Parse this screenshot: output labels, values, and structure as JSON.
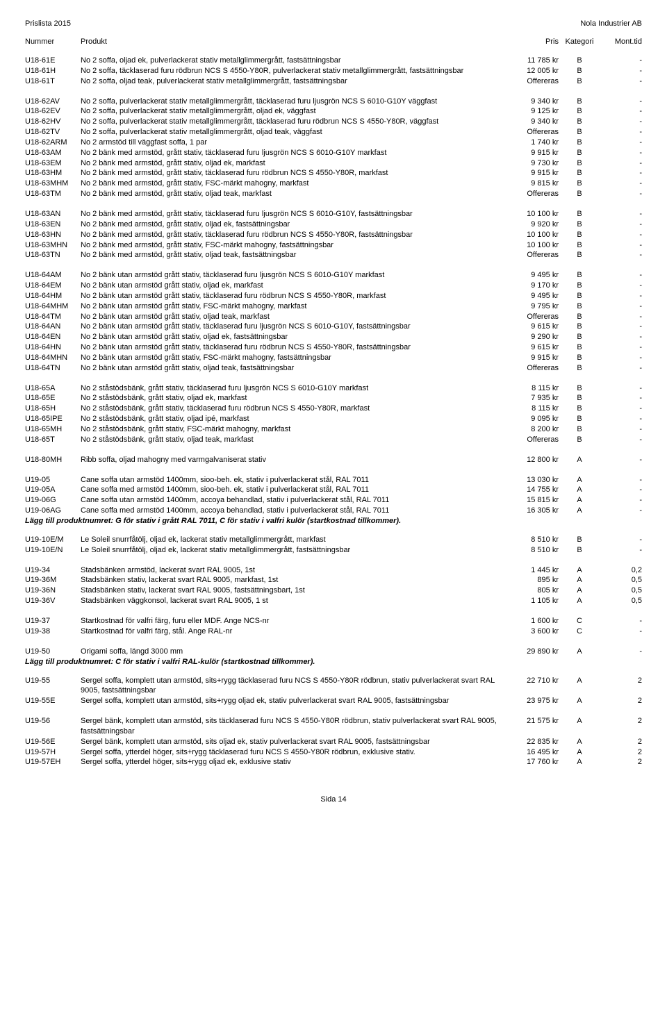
{
  "header": {
    "left": "Prislista 2015",
    "right": "Nola Industrier AB",
    "cols": {
      "nummer": "Nummer",
      "produkt": "Produkt",
      "pris": "Pris",
      "kategori": "Kategori",
      "mont": "Mont.tid"
    }
  },
  "footer": "Sida 14",
  "groups": [
    {
      "rows": [
        {
          "n": "U18-61E",
          "p": "No 2 soffa, oljad ek, pulverlackerat stativ metallglimmergrått, fastsättningsbar",
          "pr": "11 785 kr",
          "k": "B",
          "m": "-"
        },
        {
          "n": "U18-61H",
          "p": "No 2 soffa, täcklaserad furu rödbrun NCS S 4550-Y80R, pulverlackerat stativ metallglimmergrått, fastsättningsbar",
          "pr": "12 005 kr",
          "k": "B",
          "m": "-"
        },
        {
          "n": "U18-61T",
          "p": "No 2 soffa, oljad teak, pulverlackerat stativ metallglimmergrått, fastsättningsbar",
          "pr": "Offereras",
          "k": "B",
          "m": "-"
        }
      ]
    },
    {
      "rows": [
        {
          "n": "U18-62AV",
          "p": "No 2 soffa, pulverlackerat stativ metallglimmergrått, täcklaserad furu ljusgrön NCS S 6010-G10Y väggfast",
          "pr": "9 340 kr",
          "k": "B",
          "m": "-"
        },
        {
          "n": "U18-62EV",
          "p": "No 2 soffa, pulverlackerat stativ metallglimmergrått, oljad ek, väggfast",
          "pr": "9 125 kr",
          "k": "B",
          "m": "-"
        },
        {
          "n": "U18-62HV",
          "p": "No 2 soffa, pulverlackerat stativ metallglimmergrått, täcklaserad furu rödbrun NCS S 4550-Y80R, väggfast",
          "pr": "9 340 kr",
          "k": "B",
          "m": "-"
        },
        {
          "n": "U18-62TV",
          "p": "No 2 soffa, pulverlackerat stativ metallglimmergrått, oljad teak, väggfast",
          "pr": "Offereras",
          "k": "B",
          "m": "-"
        },
        {
          "n": "U18-62ARM",
          "p": "No 2 armstöd till väggfast soffa, 1 par",
          "pr": "1 740 kr",
          "k": "B",
          "m": "-"
        },
        {
          "n": "U18-63AM",
          "p": "No 2 bänk med armstöd, grått stativ, täcklaserad furu ljusgrön NCS S 6010-G10Y markfast",
          "pr": "9 915 kr",
          "k": "B",
          "m": "-"
        },
        {
          "n": "U18-63EM",
          "p": "No 2 bänk med armstöd, grått stativ, oljad ek, markfast",
          "pr": "9 730 kr",
          "k": "B",
          "m": "-"
        },
        {
          "n": "U18-63HM",
          "p": "No 2 bänk med armstöd, grått stativ, täcklaserad furu rödbrun NCS S 4550-Y80R, markfast",
          "pr": "9 915 kr",
          "k": "B",
          "m": "-"
        },
        {
          "n": "U18-63MHM",
          "p": "No 2 bänk med armstöd, grått stativ, FSC-märkt  mahogny, markfast",
          "pr": "9 815 kr",
          "k": "B",
          "m": "-"
        },
        {
          "n": "U18-63TM",
          "p": "No 2 bänk med armstöd, grått stativ, oljad teak, markfast",
          "pr": "Offereras",
          "k": "B",
          "m": "-"
        }
      ]
    },
    {
      "rows": [
        {
          "n": "U18-63AN",
          "p": "No 2 bänk med armstöd, grått stativ, täcklaserad furu ljusgrön NCS S 6010-G10Y, fastsättningsbar",
          "pr": "10 100 kr",
          "k": "B",
          "m": "-"
        },
        {
          "n": "U18-63EN",
          "p": "No 2 bänk med armstöd, grått stativ, oljad ek, fastsättningsbar",
          "pr": "9 920 kr",
          "k": "B",
          "m": "-"
        },
        {
          "n": "U18-63HN",
          "p": "No 2 bänk med armstöd, grått stativ, täcklaserad furu rödbrun NCS S 4550-Y80R, fastsättningsbar",
          "pr": "10 100 kr",
          "k": "B",
          "m": "-"
        },
        {
          "n": "U18-63MHN",
          "p": "No 2 bänk med armstöd, grått stativ, FSC-märkt  mahogny, fastsättningsbar",
          "pr": "10 100 kr",
          "k": "B",
          "m": "-"
        },
        {
          "n": "U18-63TN",
          "p": "No 2 bänk med armstöd, grått stativ, oljad teak, fastsättningsbar",
          "pr": "Offereras",
          "k": "B",
          "m": "-"
        }
      ]
    },
    {
      "rows": [
        {
          "n": "U18-64AM",
          "p": "No 2 bänk utan armstöd grått stativ, täcklaserad furu ljusgrön NCS S 6010-G10Y markfast",
          "pr": "9 495 kr",
          "k": "B",
          "m": "-"
        },
        {
          "n": "U18-64EM",
          "p": "No 2 bänk utan armstöd grått stativ, oljad ek, markfast",
          "pr": "9 170 kr",
          "k": "B",
          "m": "-"
        },
        {
          "n": "U18-64HM",
          "p": "No 2 bänk utan armstöd grått stativ, täcklaserad furu rödbrun NCS S 4550-Y80R, markfast",
          "pr": "9 495 kr",
          "k": "B",
          "m": "-"
        },
        {
          "n": "U18-64MHM",
          "p": "No 2 bänk utan armstöd grått stativ, FSC-märkt  mahogny, markfast",
          "pr": "9 795 kr",
          "k": "B",
          "m": "-"
        },
        {
          "n": "U18-64TM",
          "p": "No 2 bänk utan armstöd grått stativ, oljad teak, markfast",
          "pr": "Offereras",
          "k": "B",
          "m": "-"
        },
        {
          "n": "U18-64AN",
          "p": "No 2 bänk utan armstöd grått stativ, täcklaserad furu ljusgrön NCS S 6010-G10Y, fastsättningsbar",
          "pr": "9 615 kr",
          "k": "B",
          "m": "-"
        },
        {
          "n": "U18-64EN",
          "p": "No 2 bänk utan armstöd grått stativ, oljad ek, fastsättningsbar",
          "pr": "9 290 kr",
          "k": "B",
          "m": "-"
        },
        {
          "n": "U18-64HN",
          "p": "No 2 bänk utan armstöd grått stativ, täcklaserad furu rödbrun NCS S 4550-Y80R, fastsättningsbar",
          "pr": "9 615 kr",
          "k": "B",
          "m": "-"
        },
        {
          "n": "U18-64MHN",
          "p": "No 2 bänk utan armstöd grått stativ, FSC-märkt  mahogny, fastsättningsbar",
          "pr": "9 915 kr",
          "k": "B",
          "m": "-"
        },
        {
          "n": "U18-64TN",
          "p": "No 2 bänk utan armstöd grått stativ, oljad teak, fastsättningsbar",
          "pr": "Offereras",
          "k": "B",
          "m": "-"
        }
      ]
    },
    {
      "rows": [
        {
          "n": "U18-65A",
          "p": "No 2 ståstödsbänk, grått stativ, täcklaserad furu ljusgrön NCS S 6010-G10Y markfast",
          "pr": "8 115 kr",
          "k": "B",
          "m": "-"
        },
        {
          "n": "U18-65E",
          "p": "No 2 ståstödsbänk, grått stativ, oljad ek, markfast",
          "pr": "7 935 kr",
          "k": "B",
          "m": "-"
        },
        {
          "n": "U18-65H",
          "p": "No 2 ståstödsbänk, grått stativ, täcklaserad furu rödbrun NCS S 4550-Y80R, markfast",
          "pr": "8 115 kr",
          "k": "B",
          "m": "-"
        },
        {
          "n": "U18-65IPE",
          "p": "No 2 ståstödsbänk, grått stativ, oljad ipé, markfast",
          "pr": "9 095 kr",
          "k": "B",
          "m": "-"
        },
        {
          "n": "U18-65MH",
          "p": "No 2 ståstödsbänk, grått stativ, FSC-märkt  mahogny, markfast",
          "pr": "8 200 kr",
          "k": "B",
          "m": "-"
        },
        {
          "n": "U18-65T",
          "p": "No 2 ståstödsbänk, grått stativ, oljad teak, markfast",
          "pr": "Offereras",
          "k": "B",
          "m": "-"
        }
      ]
    },
    {
      "rows": [
        {
          "n": "U18-80MH",
          "p": "Ribb soffa, oljad mahogny med varmgalvaniserat stativ",
          "pr": "12 800 kr",
          "k": "A",
          "m": "-"
        }
      ]
    },
    {
      "rows": [
        {
          "n": "U19-05",
          "p": "Cane soffa utan armstöd 1400mm, sioo-beh. ek, stativ i pulverlackerat stål, RAL 7011",
          "pr": "13 030 kr",
          "k": "A",
          "m": "-"
        },
        {
          "n": "U19-05A",
          "p": "Cane soffa med armstöd 1400mm, sioo-beh. ek, stativ i pulverlackerat stål, RAL 7011",
          "pr": "14 755 kr",
          "k": "A",
          "m": "-"
        },
        {
          "n": "U19-06G",
          "p": "Cane soffa utan armstöd 1400mm, accoya behandlad, stativ i pulverlackerat stål, RAL 7011",
          "pr": "15 815 kr",
          "k": "A",
          "m": "-"
        },
        {
          "n": "U19-06AG",
          "p": "Cane soffa med armstöd 1400mm, accoya behandlad, stativ i pulverlackerat stål, RAL 7011",
          "pr": "16 305 kr",
          "k": "A",
          "m": "-"
        }
      ],
      "note": "Lägg till produktnumret: G för stativ i grått RAL 7011, C för stativ i valfri kulör (startkostnad tillkommer)."
    },
    {
      "rows": [
        {
          "n": "U19-10E/M",
          "p": "Le Soleil snurrfåtölj, oljad ek, lackerat stativ metallglimmergrått, markfast",
          "pr": "8 510 kr",
          "k": "B",
          "m": "-"
        },
        {
          "n": "U19-10E/N",
          "p": "Le Soleil snurrfåtölj, oljad ek, lackerat stativ metallglimmergrått, fastsättningsbar",
          "pr": "8 510 kr",
          "k": "B",
          "m": "-"
        }
      ]
    },
    {
      "rows": [
        {
          "n": "U19-34",
          "p": "Stadsbänken armstöd, lackerat svart RAL 9005, 1st",
          "pr": "1 445 kr",
          "k": "A",
          "m": "0,2"
        },
        {
          "n": "U19-36M",
          "p": "Stadsbänken stativ, lackerat svart RAL 9005, markfast, 1st",
          "pr": "895 kr",
          "k": "A",
          "m": "0,5"
        },
        {
          "n": "U19-36N",
          "p": "Stadsbänken stativ, lackerat svart RAL 9005, fastsättningsbart, 1st",
          "pr": "805 kr",
          "k": "A",
          "m": "0,5"
        },
        {
          "n": "U19-36V",
          "p": "Stadsbänken väggkonsol, lackerat svart RAL 9005, 1 st",
          "pr": "1 105 kr",
          "k": "A",
          "m": "0,5"
        }
      ]
    },
    {
      "rows": [
        {
          "n": "U19-37",
          "p": "Startkostnad för valfri färg, furu eller MDF. Ange NCS-nr",
          "pr": "1 600 kr",
          "k": "C",
          "m": "-"
        },
        {
          "n": "U19-38",
          "p": "Startkostnad för valfri färg, stål. Ange RAL-nr",
          "pr": "3 600 kr",
          "k": "C",
          "m": "-"
        }
      ]
    },
    {
      "rows": [
        {
          "n": "U19-50",
          "p": "Origami soffa, längd 3000 mm",
          "pr": "29 890 kr",
          "k": "A",
          "m": "-"
        }
      ],
      "note": "Lägg till produktnumret: C för stativ i valfri RAL-kulör (startkostnad tillkommer)."
    },
    {
      "rows": [
        {
          "n": "U19-55",
          "p": "Sergel soffa, komplett utan armstöd, sits+rygg täcklaserad furu NCS S 4550-Y80R rödbrun, stativ pulverlackerat svart RAL 9005, fastsättningsbar",
          "pr": "22 710 kr",
          "k": "A",
          "m": "2"
        },
        {
          "n": "U19-55E",
          "p": "Sergel soffa, komplett utan armstöd, sits+rygg oljad ek, stativ pulverlackerat svart RAL 9005, fastsättningsbar",
          "pr": "23 975 kr",
          "k": "A",
          "m": "2"
        }
      ]
    },
    {
      "rows": [
        {
          "n": "U19-56",
          "p": "Sergel bänk, komplett utan armstöd, sits täcklaserad furu NCS S 4550-Y80R rödbrun, stativ pulverlackerat svart RAL 9005, fastsättningsbar",
          "pr": "21 575 kr",
          "k": "A",
          "m": "2"
        },
        {
          "n": "U19-56E",
          "p": "Sergel bänk, komplett utan armstöd, sits oljad ek, stativ pulverlackerat svart RAL 9005, fastsättningsbar",
          "pr": "22 835 kr",
          "k": "A",
          "m": "2"
        },
        {
          "n": "U19-57H",
          "p": "Sergel soffa, ytterdel höger, sits+rygg täcklaserad furu NCS S 4550-Y80R rödbrun, exklusive stativ.",
          "pr": "16 495 kr",
          "k": "A",
          "m": "2"
        },
        {
          "n": "U19-57EH",
          "p": "Sergel soffa, ytterdel höger, sits+rygg oljad ek, exklusive stativ",
          "pr": "17 760 kr",
          "k": "A",
          "m": "2"
        }
      ]
    }
  ]
}
